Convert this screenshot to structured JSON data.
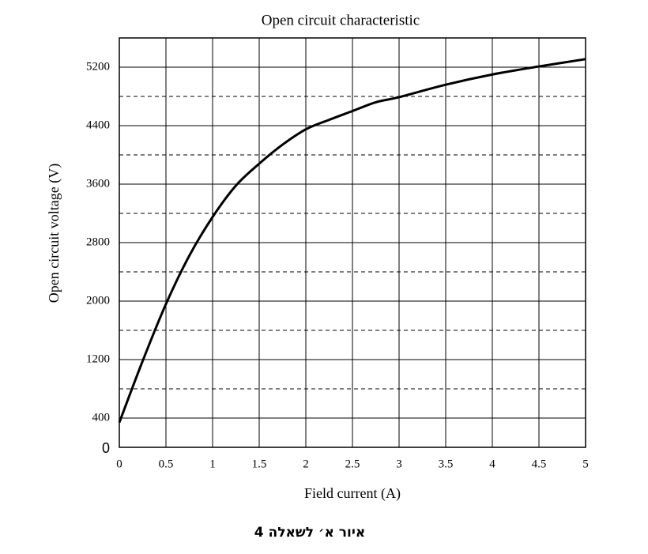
{
  "chart_data": {
    "type": "line",
    "title": "Open circuit characteristic",
    "x_label": "Field current (A)",
    "y_label": "Open circuit voltage (V)",
    "caption": "איור א׳ לשאלה 4",
    "x": [
      0,
      0.25,
      0.5,
      0.75,
      1,
      1.25,
      1.5,
      1.75,
      2,
      2.25,
      2.5,
      2.75,
      3,
      3.5,
      4,
      4.5,
      5
    ],
    "series": [
      {
        "color": "#000000",
        "values": [
          340,
          1180,
          1960,
          2620,
          3150,
          3580,
          3880,
          4140,
          4350,
          4480,
          4600,
          4720,
          4790,
          4960,
          5100,
          5210,
          5310
        ]
      }
    ],
    "xlim": [
      0,
      5
    ],
    "ylim": [
      0,
      5600
    ],
    "xticks": [
      0,
      0.5,
      1,
      1.5,
      2,
      2.5,
      3,
      3.5,
      4,
      4.5,
      5
    ],
    "yticks": [
      0,
      400,
      1200,
      2000,
      2800,
      3600,
      4400,
      5200
    ],
    "minor_yticks": [
      800,
      1600,
      2400,
      3200,
      4000,
      4800
    ],
    "grid": true
  }
}
